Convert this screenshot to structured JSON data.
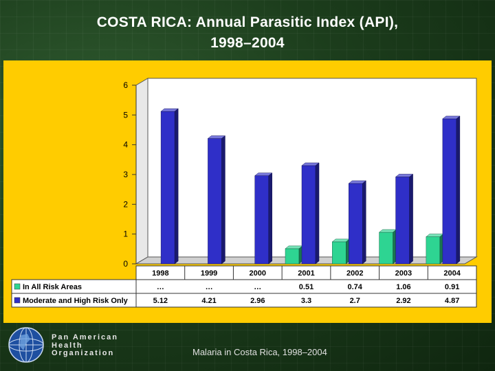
{
  "title": {
    "line1": "COSTA RICA: Annual Parasitic Index (API),",
    "line2": "1998–2004"
  },
  "chart_data": {
    "type": "bar",
    "categories": [
      "1998",
      "1999",
      "2000",
      "2001",
      "2002",
      "2003",
      "2004"
    ],
    "ylim": [
      0,
      6
    ],
    "yticks": [
      "0",
      "1",
      "2",
      "3",
      "4",
      "5",
      "6"
    ],
    "series": [
      {
        "name": "In All Risk Areas",
        "color": "#2ed492",
        "values": [
          null,
          null,
          null,
          0.51,
          0.74,
          1.06,
          0.91
        ],
        "labels": [
          "…",
          "…",
          "…",
          "0.51",
          "0.74",
          "1.06",
          "0.91"
        ]
      },
      {
        "name": "Moderate and High Risk Only",
        "color": "#2f2fc8",
        "values": [
          5.12,
          4.21,
          2.96,
          3.3,
          2.7,
          2.92,
          4.87
        ],
        "labels": [
          "5.12",
          "4.21",
          "2.96",
          "3.3",
          "2.7",
          "2.92",
          "4.87"
        ]
      }
    ],
    "legend_position": "bottom-table"
  },
  "organization": {
    "line1": "Pan American",
    "line2": "Health",
    "line3": "Organization"
  },
  "footer": "Malaria in Costa Rica, 1998–2004"
}
